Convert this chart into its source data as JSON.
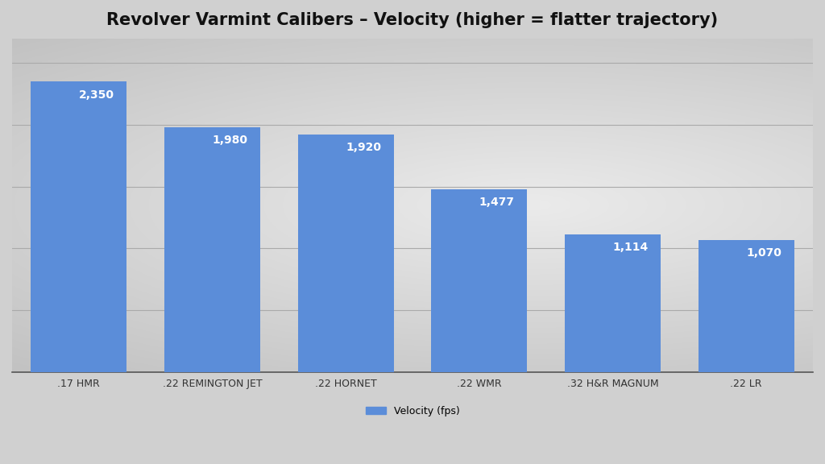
{
  "title": "Revolver Varmint Calibers – Velocity (higher = flatter trajectory)",
  "categories": [
    ".17 HMR",
    ".22 REMINGTON JET",
    ".22 HORNET",
    ".22 WMR",
    ".32 H&R MAGNUM",
    ".22 LR"
  ],
  "values": [
    2350,
    1980,
    1920,
    1477,
    1114,
    1070
  ],
  "bar_color": "#5B8DD9",
  "label_color": "#FFFFFF",
  "title_fontsize": 15,
  "label_fontsize": 10,
  "tick_fontsize": 9,
  "legend_label": "Velocity (fps)",
  "ylim": [
    0,
    2700
  ],
  "grid_color": "#CCCCCC",
  "bg_light": "#F0F0F0",
  "bg_dark": "#C8C8C8"
}
